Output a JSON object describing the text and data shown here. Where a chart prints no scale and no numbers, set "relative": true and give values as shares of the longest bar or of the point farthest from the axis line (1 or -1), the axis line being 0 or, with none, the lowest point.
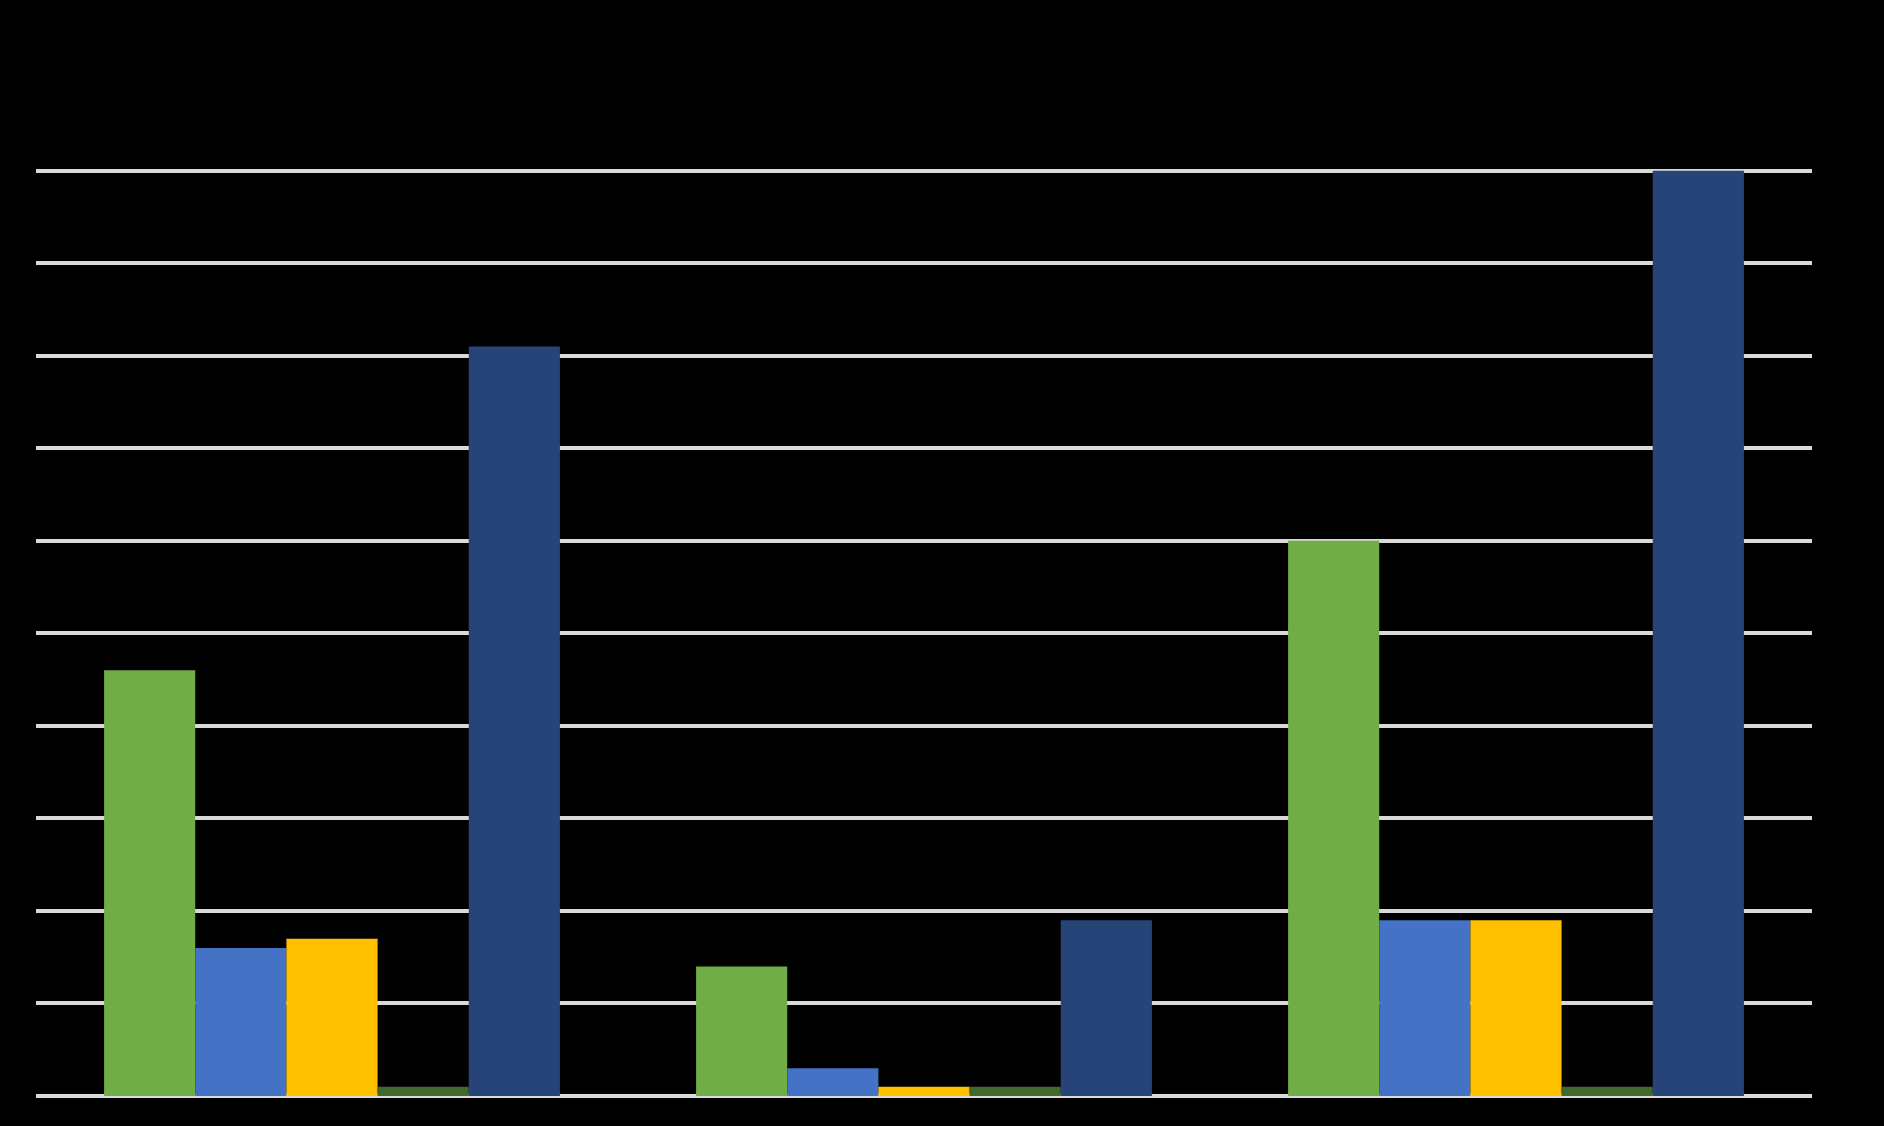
{
  "chart_data": {
    "type": "bar",
    "relative": true,
    "grid": "y",
    "categories": [
      null,
      null,
      null
    ],
    "series": [
      {
        "color": "#70ad47",
        "values": [
          0.46,
          0.14,
          0.6
        ]
      },
      {
        "color": "#4472c4",
        "values": [
          0.16,
          0.03,
          0.19
        ]
      },
      {
        "color": "#ffc000",
        "values": [
          0.17,
          0.01,
          0.19
        ]
      },
      {
        "color": "#43682b",
        "values": [
          0.01,
          0.01,
          0.01
        ]
      },
      {
        "color": "#264478",
        "values": [
          0.81,
          0.19,
          1
        ]
      }
    ]
  }
}
